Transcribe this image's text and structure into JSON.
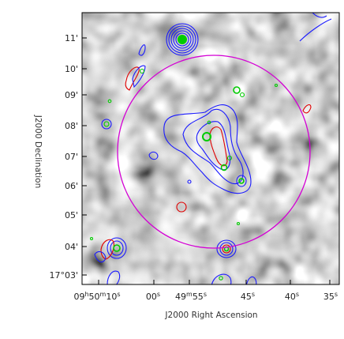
{
  "figure": {
    "xlabel": "J2000 Right Ascension",
    "ylabel": "J2000 Declination",
    "y_ticks": [
      "11'",
      "10'",
      "09'",
      "08'",
      "07'",
      "06'",
      "05'",
      "04'",
      "17°03'"
    ],
    "x_ticks": [
      {
        "h": "09",
        "m": "50",
        "s": "10",
        "kind": "hms"
      },
      {
        "s": "00",
        "kind": "s"
      },
      {
        "m": "49",
        "s": "55",
        "kind": "ms"
      },
      {
        "s": "45",
        "kind": "s"
      },
      {
        "s": "40",
        "kind": "s"
      },
      {
        "s": "35",
        "kind": "s"
      }
    ],
    "colors": {
      "circle": "#d400d4",
      "contour_blue": "#1a1aff",
      "contour_red": "#e00000",
      "contour_green": "#00cc00"
    }
  }
}
